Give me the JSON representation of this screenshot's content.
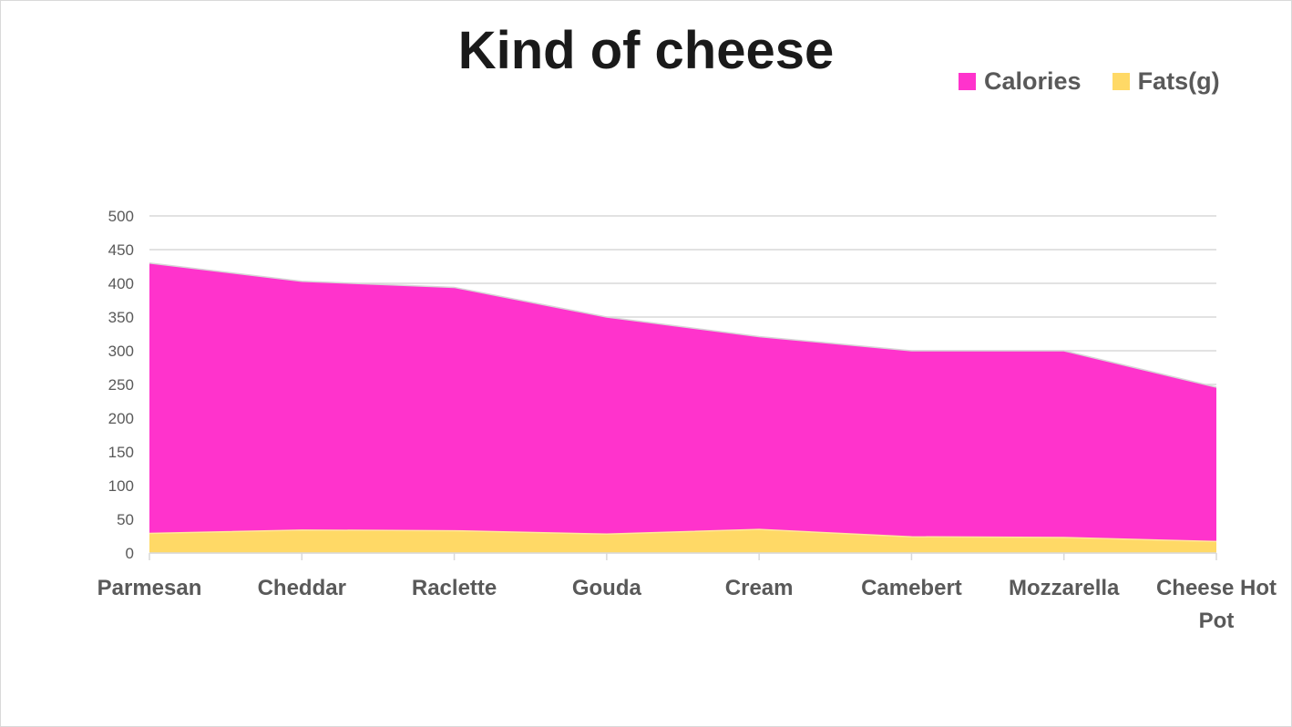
{
  "chart_data": {
    "type": "area",
    "stacking": "overlap",
    "title": "Kind of cheese",
    "categories": [
      "Parmesan",
      "Cheddar",
      "Raclette",
      "Gouda",
      "Cream",
      "Camebert",
      "Mozzarella",
      "Cheese Hot Pot"
    ],
    "series": [
      {
        "name": "Calories",
        "color": "#ff33cc",
        "values": [
          430,
          403,
          394,
          350,
          321,
          300,
          300,
          246
        ]
      },
      {
        "name": "Fats(g)",
        "color": "#ffd966",
        "values": [
          29,
          34,
          33,
          28,
          35,
          24,
          23,
          17
        ]
      }
    ],
    "y_ticks": [
      "0",
      "50",
      "100",
      "150",
      "200",
      "250",
      "300",
      "350",
      "400",
      "450",
      "500"
    ],
    "ylim": [
      0,
      500
    ],
    "grid": true,
    "legend_position": "top-right",
    "xlabel": "",
    "ylabel": ""
  }
}
